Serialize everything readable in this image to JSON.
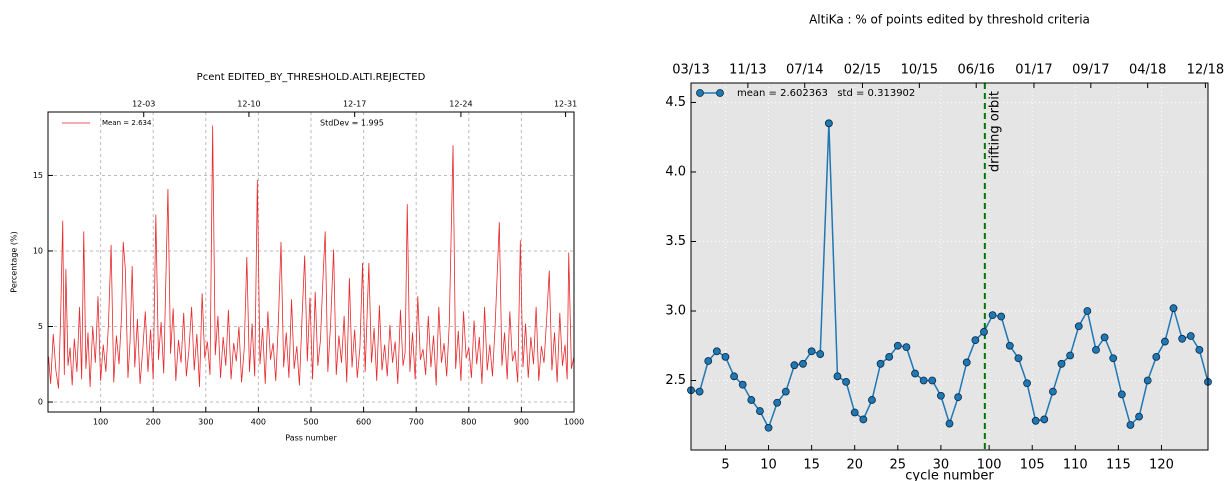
{
  "chart_data": [
    {
      "type": "line",
      "title": "Pcent EDITED_BY_THRESHOLD.ALTI.REJECTED",
      "xlabel": "Pass number",
      "ylabel": "Percentage (%)",
      "x": [
        1,
        5,
        10,
        15,
        20,
        24,
        28,
        31,
        34,
        38,
        42,
        46,
        50,
        55,
        60,
        64,
        68,
        72,
        76,
        80,
        85,
        90,
        95,
        100,
        105,
        110,
        115,
        120,
        125,
        130,
        135,
        140,
        143,
        147,
        152,
        156,
        160,
        165,
        170,
        175,
        180,
        185,
        190,
        195,
        200,
        205,
        210,
        215,
        220,
        228,
        233,
        238,
        243,
        248,
        253,
        258,
        263,
        268,
        273,
        278,
        283,
        288,
        293,
        298,
        303,
        308,
        313,
        318,
        323,
        328,
        333,
        338,
        343,
        348,
        353,
        358,
        363,
        368,
        373,
        378,
        383,
        388,
        393,
        398,
        403,
        408,
        413,
        418,
        423,
        428,
        433,
        438,
        443,
        448,
        453,
        458,
        463,
        468,
        473,
        478,
        483,
        488,
        493,
        498,
        503,
        508,
        513,
        518,
        522,
        527,
        532,
        537,
        543,
        548,
        553,
        558,
        563,
        568,
        573,
        578,
        583,
        588,
        593,
        598,
        603,
        610,
        615,
        620,
        625,
        630,
        635,
        640,
        645,
        650,
        655,
        660,
        665,
        670,
        675,
        679,
        683,
        688,
        693,
        698,
        703,
        708,
        713,
        718,
        723,
        728,
        733,
        738,
        743,
        748,
        753,
        758,
        763,
        770,
        775,
        780,
        785,
        790,
        795,
        800,
        805,
        810,
        815,
        820,
        825,
        830,
        835,
        840,
        845,
        850,
        858,
        863,
        868,
        873,
        878,
        883,
        888,
        893,
        898,
        903,
        908,
        913,
        918,
        923,
        928,
        933,
        938,
        943,
        948,
        953,
        958,
        963,
        968,
        973,
        978,
        983,
        987,
        990,
        995,
        1000
      ],
      "series": [
        {
          "name": "Mean = 2.634",
          "color": "#e8282b",
          "values": [
            3.0,
            1.2,
            4.5,
            2.1,
            0.9,
            5.6,
            12.0,
            1.8,
            8.8,
            2.4,
            3.6,
            1.1,
            4.2,
            2.0,
            6.3,
            1.5,
            11.3,
            2.2,
            4.6,
            1.0,
            5.0,
            2.6,
            7.0,
            1.4,
            3.8,
            2.0,
            5.2,
            10.4,
            1.3,
            4.4,
            2.5,
            5.8,
            10.6,
            8.8,
            1.6,
            4.0,
            9.0,
            2.3,
            5.5,
            1.2,
            3.4,
            6.0,
            2.0,
            4.8,
            1.5,
            12.4,
            2.8,
            5.3,
            1.9,
            14.1,
            3.2,
            6.2,
            1.4,
            4.1,
            2.6,
            5.9,
            1.7,
            3.5,
            6.3,
            2.1,
            4.5,
            1.0,
            7.2,
            2.9,
            4.0,
            1.8,
            18.3,
            3.1,
            5.7,
            1.6,
            4.3,
            2.4,
            6.1,
            1.5,
            3.9,
            2.7,
            5.0,
            1.3,
            3.5,
            9.6,
            2.0,
            5.2,
            1.7,
            14.7,
            2.5,
            4.9,
            1.2,
            6.0,
            2.8,
            3.9,
            1.4,
            5.3,
            10.6,
            2.3,
            4.6,
            1.6,
            6.8,
            2.2,
            3.7,
            1.1,
            5.6,
            9.7,
            2.7,
            6.9,
            1.5,
            7.3,
            2.4,
            4.1,
            7.6,
            11.3,
            2.0,
            5.0,
            10.1,
            1.8,
            4.4,
            2.6,
            5.7,
            1.3,
            8.2,
            2.3,
            4.8,
            1.6,
            3.6,
            9.2,
            2.0,
            9.2,
            2.6,
            4.9,
            1.4,
            6.4,
            2.1,
            3.8,
            1.7,
            5.1,
            2.6,
            4.0,
            1.2,
            6.1,
            2.4,
            3.3,
            13.1,
            2.0,
            4.6,
            1.5,
            7.0,
            2.8,
            3.5,
            1.8,
            5.7,
            2.3,
            4.4,
            1.1,
            6.3,
            2.6,
            3.9,
            1.7,
            5.3,
            17.0,
            2.2,
            4.7,
            1.4,
            6.0,
            2.9,
            3.6,
            1.6,
            5.4,
            2.5,
            4.3,
            1.2,
            6.3,
            2.1,
            3.8,
            1.7,
            5.0,
            11.9,
            2.4,
            4.6,
            1.5,
            6.0,
            2.7,
            3.4,
            1.3,
            10.7,
            2.3,
            5.2,
            1.6,
            4.3,
            2.5,
            6.3,
            1.4,
            3.7,
            2.6,
            5.5,
            8.7,
            2.1,
            4.6,
            1.3,
            5.9,
            2.4,
            3.8,
            1.5,
            9.9,
            2.2,
            3.0
          ]
        }
      ],
      "annotations": [
        {
          "text": "StdDev = 1.995"
        }
      ],
      "xlim": [
        0,
        1000
      ],
      "xticks": [
        100,
        200,
        300,
        400,
        500,
        600,
        700,
        800,
        900,
        1000
      ],
      "x2ticks": [
        {
          "value": 182,
          "label": "12-03"
        },
        {
          "value": 382,
          "label": "12-10"
        },
        {
          "value": 583,
          "label": "12-17"
        },
        {
          "value": 785,
          "label": "12-24"
        },
        {
          "value": 984,
          "label": "12-31"
        }
      ],
      "ylim": [
        -0.66,
        19.2
      ],
      "yticks": [
        0,
        5,
        10,
        15
      ],
      "grid": true,
      "legend": "upper left"
    },
    {
      "type": "line",
      "title": "AltiKa : % of points edited by threshold criteria",
      "xlabel": "cycle number",
      "x": [
        1,
        2,
        3,
        4,
        5,
        6,
        7,
        8,
        9,
        10,
        11,
        12,
        13,
        14,
        15,
        16,
        17,
        18,
        19,
        20,
        21,
        22,
        23,
        24,
        25,
        26,
        27,
        28,
        29,
        30,
        31,
        32,
        33,
        34,
        35,
        36,
        37,
        38,
        39,
        40,
        41,
        42,
        43,
        44,
        45,
        46,
        47,
        48,
        49,
        50,
        51,
        52,
        53,
        54,
        55,
        56,
        57,
        58,
        59,
        60,
        61
      ],
      "series": [
        {
          "name": "mean = 2.602363   std = 0.313902",
          "color": "#1f77b4",
          "values": [
            2.43,
            2.42,
            2.64,
            2.71,
            2.67,
            2.53,
            2.47,
            2.36,
            2.28,
            2.16,
            2.34,
            2.42,
            2.61,
            2.62,
            2.71,
            2.69,
            4.35,
            2.53,
            2.49,
            2.27,
            2.22,
            2.36,
            2.62,
            2.67,
            2.75,
            2.74,
            2.55,
            2.5,
            2.5,
            2.39,
            2.19,
            2.38,
            2.63,
            2.79,
            2.85,
            2.97,
            2.96,
            2.75,
            2.66,
            2.48,
            2.21,
            2.22,
            2.42,
            2.62,
            2.68,
            2.89,
            3.0,
            2.72,
            2.81,
            2.66,
            2.4,
            2.18,
            2.24,
            2.5,
            2.67,
            2.78,
            3.02,
            2.8,
            2.82,
            2.72,
            2.49
          ]
        }
      ],
      "annotations": [
        {
          "text": "drifting orbit",
          "x": 35.1,
          "color": "#007700"
        }
      ],
      "xlim": [
        1,
        61
      ],
      "xticks": [
        5,
        10,
        15,
        20,
        25,
        30,
        {
          "value": 35.6,
          "label": "100"
        },
        {
          "value": 40.6,
          "label": "105"
        },
        {
          "value": 45.6,
          "label": "110"
        },
        {
          "value": 50.6,
          "label": "115"
        },
        {
          "value": 55.6,
          "label": "120"
        }
      ],
      "x2ticks": [
        {
          "value": 1,
          "label": "03/13"
        },
        {
          "value": 7.6,
          "label": "11/13"
        },
        {
          "value": 14.2,
          "label": "07/14"
        },
        {
          "value": 20.9,
          "label": "02/15"
        },
        {
          "value": 27.5,
          "label": "10/15"
        },
        {
          "value": 34.1,
          "label": "06/16"
        },
        {
          "value": 40.8,
          "label": "01/17"
        },
        {
          "value": 47.4,
          "label": "09/17"
        },
        {
          "value": 54,
          "label": "04/18"
        },
        {
          "value": 60.7,
          "label": "12/18"
        }
      ],
      "ylim": [
        2.0,
        4.64
      ],
      "yticks": [
        2.5,
        {
          "value": 3.0,
          "label": "3.0"
        },
        3.5,
        {
          "value": 4.0,
          "label": "4.0"
        },
        4.5
      ],
      "grid": true,
      "legend": "upper left"
    }
  ]
}
